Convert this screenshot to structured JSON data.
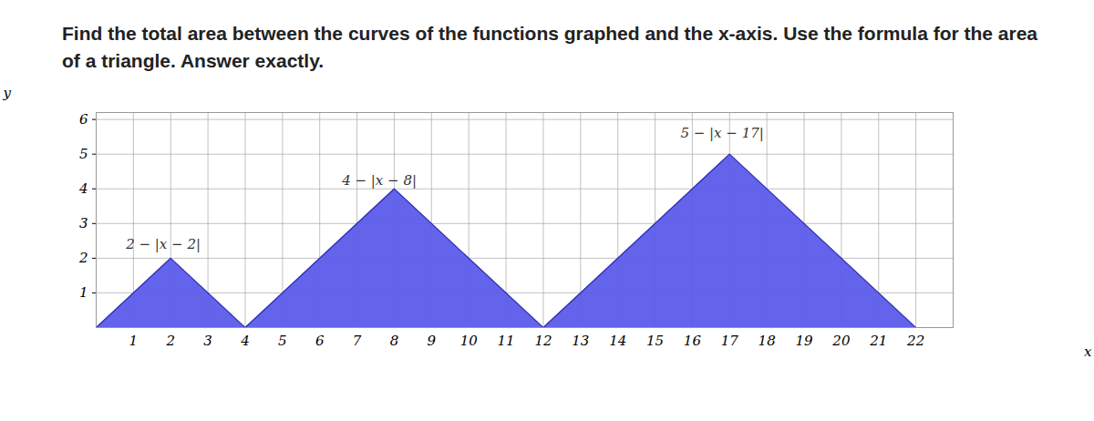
{
  "chart_data": {
    "type": "area",
    "title": "Find the total area between the curves of the functions graphed and the x-axis. Use the formula for the area of a triangle. Answer exactly.",
    "x_label": "x",
    "y_label": "y",
    "x": [
      0,
      2,
      4,
      8,
      12,
      17,
      22
    ],
    "values": [
      0,
      2,
      0,
      4,
      0,
      5,
      0
    ],
    "color": "#5b5bea",
    "xlim": [
      0,
      23
    ],
    "ylim": [
      0,
      6.2
    ],
    "xticks": [
      1,
      2,
      3,
      4,
      5,
      6,
      7,
      8,
      9,
      10,
      11,
      12,
      13,
      14,
      15,
      16,
      17,
      18,
      19,
      20,
      21,
      22
    ],
    "yticks": [
      1,
      2,
      3,
      4,
      5,
      6
    ],
    "grid": true,
    "annotations": [
      {
        "text": "2 − |x − 2|",
        "x": 1.8,
        "y": 2.4
      },
      {
        "text": "4 − |x − 8|",
        "x": 7.6,
        "y": 4.25
      },
      {
        "text": "5 − |x − 17|",
        "x": 16.8,
        "y": 5.6
      }
    ]
  }
}
